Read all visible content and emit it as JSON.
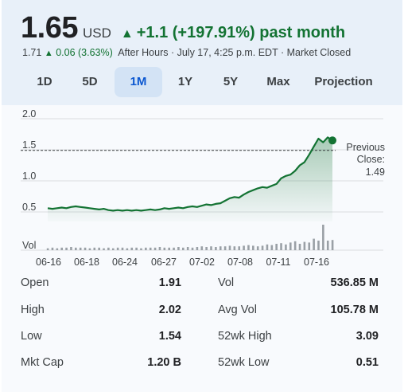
{
  "quote": {
    "price": "1.65",
    "currency": "USD",
    "change_arrow": "▲",
    "change_text": "+1.1 (+197.91%) past month",
    "after_hours_price": "1.71",
    "after_hours_arrow": "▲",
    "after_hours_change": "0.06 (3.63%)",
    "after_hours_info": "After Hours · July 17, 4:25 p.m. EDT · Market Closed",
    "accent_color": "#137333"
  },
  "tabs": [
    {
      "label": "1D",
      "active": false
    },
    {
      "label": "5D",
      "active": false
    },
    {
      "label": "1M",
      "active": true
    },
    {
      "label": "1Y",
      "active": false
    },
    {
      "label": "5Y",
      "active": false
    },
    {
      "label": "Max",
      "active": false
    },
    {
      "label": "Projection",
      "active": false
    }
  ],
  "chart_data": {
    "type": "line",
    "y_ticks": [
      "2.0",
      "1.5",
      "1.0",
      "0.5"
    ],
    "ylim": [
      0.35,
      2.0
    ],
    "x_ticks": [
      "06-16",
      "06-18",
      "06-24",
      "06-27",
      "07-02",
      "07-08",
      "07-11",
      "07-16"
    ],
    "previous_close": {
      "label_line1": "Previous",
      "label_line2": "Close:",
      "value": "1.49",
      "y": 1.49
    },
    "volume_label": "Vol",
    "line_color": "#137333",
    "series": [
      {
        "y": [
          0.56,
          0.55,
          0.56,
          0.57,
          0.56,
          0.58,
          0.59,
          0.58,
          0.57,
          0.56,
          0.55,
          0.54,
          0.55,
          0.53,
          0.52,
          0.53,
          0.52,
          0.53,
          0.52,
          0.53,
          0.52,
          0.53,
          0.54,
          0.53,
          0.54,
          0.56,
          0.55,
          0.56,
          0.57,
          0.56,
          0.58,
          0.59,
          0.58,
          0.6,
          0.62,
          0.61,
          0.63,
          0.64,
          0.68,
          0.72,
          0.74,
          0.73,
          0.78,
          0.82,
          0.85,
          0.88,
          0.9,
          0.89,
          0.92,
          0.95,
          1.04,
          1.08,
          1.1,
          1.16,
          1.25,
          1.3,
          1.42,
          1.55,
          1.68,
          1.62,
          1.7,
          1.65
        ]
      }
    ],
    "volume": [
      3,
      4,
      3,
      4,
      4,
      5,
      4,
      4,
      4,
      3,
      4,
      4,
      3,
      4,
      3,
      4,
      4,
      3,
      4,
      4,
      3,
      4,
      4,
      4,
      5,
      4,
      4,
      4,
      5,
      4,
      5,
      4,
      5,
      6,
      5,
      6,
      5,
      6,
      6,
      7,
      6,
      6,
      7,
      8,
      7,
      6,
      7,
      9,
      8,
      10,
      11,
      9,
      12,
      14,
      10,
      13,
      12,
      18,
      15,
      40,
      15,
      16
    ]
  },
  "stats": [
    {
      "label": "Open",
      "value": "1.91"
    },
    {
      "label": "High",
      "value": "2.02"
    },
    {
      "label": "Low",
      "value": "1.54"
    },
    {
      "label": "Mkt Cap",
      "value": "1.20 B"
    },
    {
      "label": "Vol",
      "value": "536.85 M"
    },
    {
      "label": "Avg Vol",
      "value": "105.78 M"
    },
    {
      "label": "52wk High",
      "value": "3.09"
    },
    {
      "label": "52wk Low",
      "value": "0.51"
    }
  ]
}
